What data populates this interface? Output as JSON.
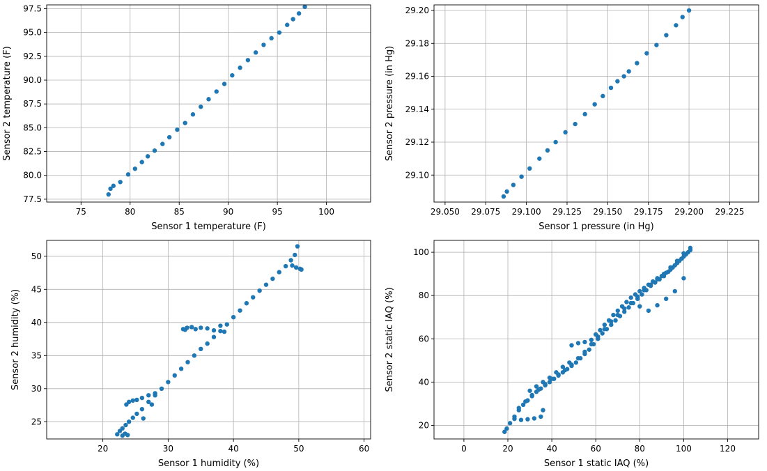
{
  "chart_data": [
    {
      "type": "scatter",
      "xlabel": "Sensor 1 temperature (F)",
      "ylabel": "Sensor 2 temperature (F)",
      "xlim": [
        71.5,
        104.5
      ],
      "ylim": [
        77.2,
        97.9
      ],
      "xticks": [
        75,
        80,
        85,
        90,
        95,
        100
      ],
      "yticks": [
        77.5,
        80.0,
        82.5,
        85.0,
        87.5,
        90.0,
        92.5,
        95.0,
        97.5
      ],
      "xtick_labels": [
        "75",
        "80",
        "85",
        "90",
        "95",
        "100"
      ],
      "ytick_labels": [
        "77.5",
        "80.0",
        "82.5",
        "85.0",
        "87.5",
        "90.0",
        "92.5",
        "95.0",
        "97.5"
      ],
      "grid": true,
      "color": "#1f77b4",
      "series": [
        {
          "x": [
            77.8,
            78.0,
            78.3,
            79.0,
            79.8,
            80.5,
            81.2,
            81.8,
            82.5,
            83.3,
            84.0,
            84.8,
            85.6,
            86.4,
            87.2,
            88.0,
            88.8,
            89.6,
            90.4,
            91.2,
            92.0,
            92.8,
            93.6,
            94.4,
            95.2,
            96.0,
            96.6,
            97.2,
            97.8
          ],
          "y": [
            78.0,
            78.6,
            78.9,
            79.3,
            80.1,
            80.7,
            81.4,
            82.0,
            82.6,
            83.3,
            84.0,
            84.8,
            85.5,
            86.4,
            87.2,
            88.0,
            88.8,
            89.6,
            90.5,
            91.3,
            92.1,
            92.9,
            93.7,
            94.4,
            95.0,
            95.8,
            96.4,
            97.0,
            97.7
          ]
        }
      ]
    },
    {
      "type": "scatter",
      "xlabel": "Sensor 1 pressure (in Hg)",
      "ylabel": "Sensor 2 pressure (in Hg)",
      "xlim": [
        29.0432,
        29.2428
      ],
      "ylim": [
        29.0836,
        29.2034
      ],
      "xticks": [
        29.05,
        29.075,
        29.1,
        29.125,
        29.15,
        29.175,
        29.2,
        29.225
      ],
      "yticks": [
        29.1,
        29.12,
        29.14,
        29.16,
        29.18,
        29.2
      ],
      "xtick_labels": [
        "29.050",
        "29.075",
        "29.100",
        "29.125",
        "29.150",
        "29.175",
        "29.200",
        "29.225"
      ],
      "ytick_labels": [
        "29.10",
        "29.12",
        "29.14",
        "29.16",
        "29.18",
        "29.20"
      ],
      "grid": true,
      "color": "#1f77b4",
      "series": [
        {
          "x": [
            29.086,
            29.088,
            29.092,
            29.097,
            29.102,
            29.108,
            29.113,
            29.118,
            29.124,
            29.13,
            29.136,
            29.142,
            29.147,
            29.152,
            29.156,
            29.16,
            29.163,
            29.168,
            29.174,
            29.18,
            29.186,
            29.192,
            29.196,
            29.2
          ],
          "y": [
            29.087,
            29.09,
            29.094,
            29.099,
            29.104,
            29.11,
            29.115,
            29.12,
            29.126,
            29.131,
            29.137,
            29.143,
            29.148,
            29.153,
            29.157,
            29.16,
            29.163,
            29.168,
            29.174,
            29.179,
            29.185,
            29.191,
            29.196,
            29.2
          ]
        }
      ]
    },
    {
      "type": "scatter",
      "xlabel": "Sensor 1 humidity (%)",
      "ylabel": "Sensor 2 humidity (%)",
      "xlim": [
        11.4,
        61.0
      ],
      "ylim": [
        22.4,
        52.4
      ],
      "xticks": [
        20,
        30,
        40,
        50,
        60
      ],
      "yticks": [
        25,
        30,
        35,
        40,
        45,
        50
      ],
      "xtick_labels": [
        "20",
        "30",
        "40",
        "50",
        "60"
      ],
      "ytick_labels": [
        "25",
        "30",
        "35",
        "40",
        "45",
        "50"
      ],
      "grid": true,
      "color": "#1f77b4",
      "series": [
        {
          "x": [
            22.2,
            22.6,
            23.0,
            23.5,
            24.0,
            24.6,
            25.2,
            26.0,
            27.0,
            28.0,
            29.0,
            30.0,
            31.0,
            32.0,
            33.0,
            34.0,
            35.0,
            36.0,
            37.0,
            38.0,
            39.0,
            40.0,
            41.0,
            42.0,
            43.0,
            44.0,
            45.0,
            46.0,
            47.0,
            48.0,
            48.8,
            49.4,
            23.6,
            24.0,
            24.6,
            25.2,
            26.0,
            27.0,
            28.0,
            32.3,
            32.6,
            32.9,
            33.6,
            34.2,
            35.0,
            36.0,
            37.0,
            38.0,
            38.6,
            49.0,
            49.6,
            50.2,
            50.4,
            49.8,
            23.0,
            23.4,
            23.8,
            26.2,
            27.5
          ],
          "y": [
            23.1,
            23.6,
            24.0,
            24.5,
            25.0,
            25.6,
            26.2,
            26.9,
            28.0,
            29.0,
            30.0,
            31.0,
            32.0,
            33.0,
            34.0,
            35.0,
            36.0,
            36.8,
            37.8,
            38.7,
            39.7,
            40.8,
            41.8,
            42.9,
            43.8,
            44.8,
            45.7,
            46.6,
            47.6,
            48.5,
            49.4,
            50.2,
            27.6,
            28.0,
            28.2,
            28.3,
            28.6,
            29.0,
            29.3,
            39.0,
            38.9,
            39.2,
            39.3,
            39.0,
            39.2,
            39.1,
            38.8,
            39.5,
            38.6,
            48.6,
            48.3,
            48.1,
            48.0,
            51.5,
            22.9,
            23.2,
            23.0,
            25.5,
            27.6
          ]
        }
      ]
    },
    {
      "type": "scatter",
      "xlabel": "Sensor 1 static IAQ (%)",
      "ylabel": "Sensor 2 static IAQ (%)",
      "xlim": [
        -13.6,
        134.1
      ],
      "ylim": [
        13.7,
        105.5
      ],
      "xticks": [
        0,
        20,
        40,
        60,
        80,
        100,
        120
      ],
      "yticks": [
        20,
        40,
        60,
        80,
        100
      ],
      "xtick_labels": [
        "0",
        "20",
        "40",
        "60",
        "80",
        "100",
        "120"
      ],
      "ytick_labels": [
        "20",
        "40",
        "60",
        "80",
        "100"
      ],
      "grid": true,
      "color": "#1f77b4",
      "series": [
        {
          "x": [
            18.5,
            19.5,
            21.0,
            23.0,
            25.0,
            27.0,
            29.0,
            31.0,
            33.0,
            35.0,
            37.0,
            39.0,
            41.0,
            43.0,
            45.0,
            47.0,
            49.0,
            51.0,
            53.0,
            55.0,
            57.0,
            59.0,
            61.0,
            63.0,
            65.0,
            67.0,
            69.0,
            71.0,
            73.0,
            75.0,
            77.0,
            79.0,
            81.0,
            83.0,
            85.0,
            87.0,
            89.0,
            91.0,
            93.0,
            95.0,
            97.0,
            99.0,
            101.0,
            103.0,
            23.0,
            26.0,
            29.0,
            32.0,
            35.0,
            36.0,
            25.0,
            28.0,
            31.0,
            34.0,
            37.0,
            40.0,
            43.0,
            46.0,
            49.0,
            52.0,
            55.0,
            58.0,
            61.0,
            64.0,
            67.0,
            70.0,
            73.0,
            76.0,
            79.0,
            82.0,
            85.0,
            88.0,
            91.0,
            94.0,
            97.0,
            100.0,
            49.0,
            52.0,
            55.0,
            58.0,
            60.0,
            62.0,
            64.0,
            66.0,
            68.0,
            70.0,
            72.0,
            74.0,
            76.0,
            78.0,
            80.0,
            82.0,
            84.0,
            86.0,
            88.0,
            90.0,
            92.0,
            94.0,
            96.0,
            98.0,
            100.0,
            102.0,
            103.0,
            30.0,
            33.0,
            36.0,
            39.0,
            42.0,
            45.0,
            48.0,
            80.0,
            84.0,
            88.0,
            92.0,
            96.0,
            100.0
          ],
          "y": [
            17.0,
            18.5,
            21.0,
            24.0,
            27.0,
            29.5,
            31.5,
            33.5,
            35.5,
            37.0,
            38.5,
            40.0,
            41.5,
            43.0,
            44.5,
            46.0,
            47.5,
            49.0,
            51.0,
            53.0,
            55.0,
            57.5,
            60.0,
            62.5,
            64.5,
            66.5,
            68.5,
            70.5,
            72.5,
            74.5,
            76.5,
            78.5,
            80.5,
            82.5,
            84.5,
            86.0,
            87.5,
            89.0,
            91.0,
            93.0,
            95.0,
            97.0,
            99.0,
            101.0,
            23.0,
            22.5,
            22.8,
            23.2,
            24.0,
            27.0,
            28.0,
            31.0,
            34.0,
            36.5,
            39.0,
            41.5,
            43.5,
            45.5,
            48.0,
            51.0,
            54.0,
            57.5,
            61.0,
            64.5,
            68.0,
            71.0,
            74.0,
            76.5,
            79.5,
            82.5,
            85.0,
            87.5,
            90.0,
            93.0,
            96.0,
            99.5,
            57.0,
            58.0,
            58.5,
            59.5,
            62.0,
            64.0,
            66.5,
            68.5,
            71.0,
            73.0,
            75.0,
            77.0,
            79.0,
            80.5,
            82.0,
            83.5,
            85.0,
            86.5,
            88.0,
            89.0,
            90.5,
            92.0,
            94.0,
            96.0,
            98.0,
            100.0,
            102.0,
            36.0,
            38.0,
            40.0,
            42.0,
            44.5,
            47.0,
            49.0,
            75.0,
            73.0,
            75.5,
            78.5,
            82.0,
            88.0
          ]
        }
      ]
    }
  ]
}
